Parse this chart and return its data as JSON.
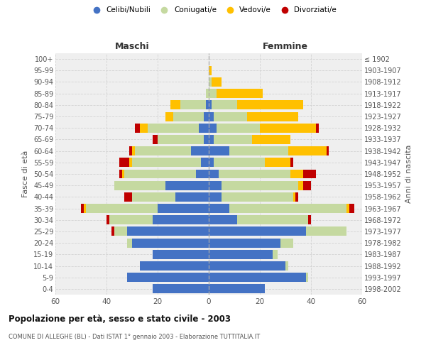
{
  "age_groups": [
    "0-4",
    "5-9",
    "10-14",
    "15-19",
    "20-24",
    "25-29",
    "30-34",
    "35-39",
    "40-44",
    "45-49",
    "50-54",
    "55-59",
    "60-64",
    "65-69",
    "70-74",
    "75-79",
    "80-84",
    "85-89",
    "90-94",
    "95-99",
    "100+"
  ],
  "birth_years": [
    "1998-2002",
    "1993-1997",
    "1988-1992",
    "1983-1987",
    "1978-1982",
    "1973-1977",
    "1968-1972",
    "1963-1967",
    "1958-1962",
    "1953-1957",
    "1948-1952",
    "1943-1947",
    "1938-1942",
    "1933-1937",
    "1928-1932",
    "1923-1927",
    "1918-1922",
    "1913-1917",
    "1908-1912",
    "1903-1907",
    "≤ 1902"
  ],
  "males": {
    "celibi": [
      22,
      32,
      27,
      22,
      30,
      32,
      22,
      20,
      13,
      17,
      5,
      3,
      7,
      2,
      4,
      2,
      1,
      0,
      0,
      0,
      0
    ],
    "coniugati": [
      0,
      0,
      0,
      0,
      2,
      5,
      17,
      28,
      17,
      20,
      28,
      27,
      22,
      18,
      20,
      12,
      10,
      1,
      0,
      0,
      0
    ],
    "vedovi": [
      0,
      0,
      0,
      0,
      0,
      0,
      0,
      1,
      0,
      0,
      1,
      1,
      1,
      0,
      3,
      3,
      4,
      0,
      0,
      0,
      0
    ],
    "divorziati": [
      0,
      0,
      0,
      0,
      0,
      1,
      1,
      1,
      3,
      0,
      1,
      4,
      1,
      2,
      2,
      0,
      0,
      0,
      0,
      0,
      0
    ]
  },
  "females": {
    "nubili": [
      22,
      38,
      30,
      25,
      28,
      38,
      11,
      8,
      5,
      5,
      4,
      2,
      8,
      2,
      3,
      2,
      1,
      0,
      0,
      0,
      0
    ],
    "coniugate": [
      0,
      1,
      1,
      2,
      5,
      16,
      28,
      46,
      28,
      30,
      28,
      20,
      23,
      15,
      17,
      13,
      10,
      3,
      1,
      0,
      0
    ],
    "vedove": [
      0,
      0,
      0,
      0,
      0,
      0,
      0,
      1,
      1,
      2,
      5,
      10,
      15,
      15,
      22,
      20,
      26,
      18,
      4,
      1,
      0
    ],
    "divorziate": [
      0,
      0,
      0,
      0,
      0,
      0,
      1,
      2,
      1,
      3,
      5,
      1,
      1,
      0,
      1,
      0,
      0,
      0,
      0,
      0,
      0
    ]
  },
  "colors": {
    "celibi_nubili": "#4472c4",
    "coniugati_e": "#c5d9a0",
    "vedovi_e": "#ffc000",
    "divorziati_e": "#c00000"
  },
  "xlim": 60,
  "title": "Popolazione per età, sesso e stato civile - 2003",
  "subtitle": "COMUNE DI ALLEGHE (BL) - Dati ISTAT 1° gennaio 2003 - Elaborazione TUTTITALIA.IT",
  "ylabel_left": "Fasce di età",
  "ylabel_right": "Anni di nascita",
  "xlabel_left": "Maschi",
  "xlabel_right": "Femmine",
  "background_color": "#ffffff",
  "plot_bg_color": "#efefef",
  "grid_color": "#cccccc"
}
